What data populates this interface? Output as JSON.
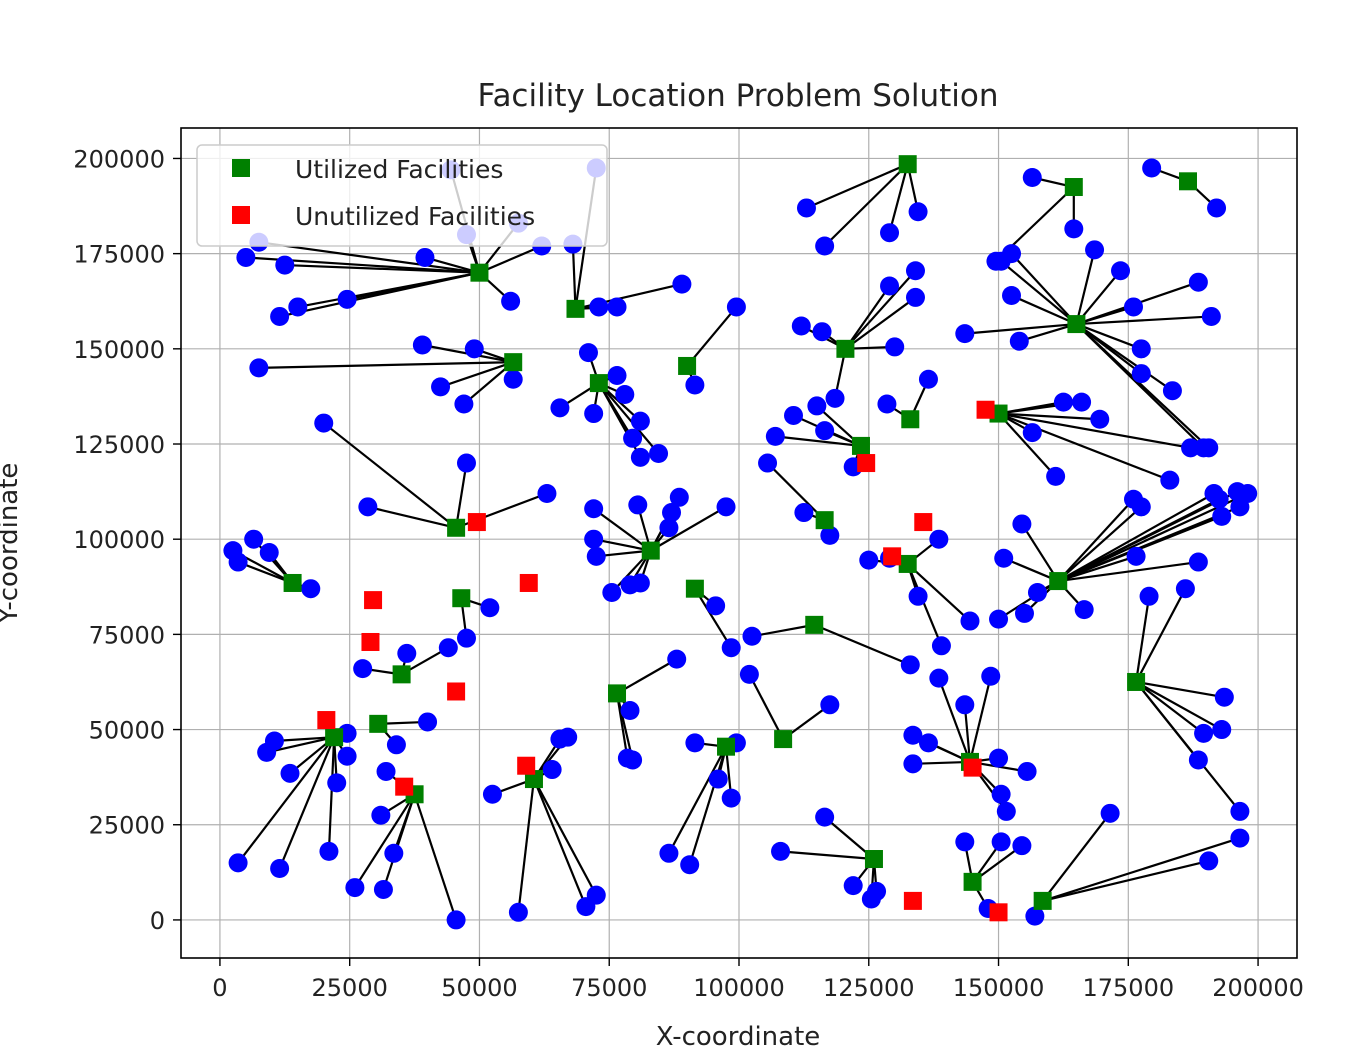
{
  "chart_data": {
    "type": "scatter",
    "title": "Facility Location Problem Solution",
    "xlabel": "X-coordinate",
    "ylabel": "Y-coordinate",
    "xlim": [
      -7500,
      207500
    ],
    "ylim": [
      -10000,
      208000
    ],
    "xticks": [
      0,
      25000,
      50000,
      75000,
      100000,
      125000,
      150000,
      175000,
      200000
    ],
    "yticks": [
      0,
      25000,
      50000,
      75000,
      100000,
      125000,
      150000,
      175000,
      200000
    ],
    "grid": true,
    "legend": {
      "placement": "top-left",
      "entries": [
        {
          "name": "Utilized Facilities",
          "color": "#008000"
        },
        {
          "name": "Unutilized Facilities",
          "color": "#ff0000"
        }
      ]
    },
    "colors": {
      "customer": "#0000ff",
      "assignment_line": "#000000",
      "utilized": "#008000",
      "unutilized": "#ff0000"
    },
    "utilized_facilities": [
      {
        "x": 50000,
        "y": 170000,
        "customers": [
          [
            5000,
            174000
          ],
          [
            7500,
            178000
          ],
          [
            12500,
            172000
          ],
          [
            11500,
            158500
          ],
          [
            15000,
            161000
          ],
          [
            24500,
            163000
          ],
          [
            39500,
            174000
          ],
          [
            44500,
            197000
          ],
          [
            47500,
            180000
          ],
          [
            56000,
            162500
          ],
          [
            57500,
            183000
          ],
          [
            62000,
            177000
          ]
        ]
      },
      {
        "x": 68500,
        "y": 160500,
        "customers": [
          [
            68000,
            177500
          ],
          [
            72500,
            197500
          ],
          [
            73000,
            161000
          ],
          [
            76500,
            161000
          ],
          [
            89000,
            167000
          ]
        ]
      },
      {
        "x": 56500,
        "y": 146500,
        "customers": [
          [
            7500,
            145000
          ],
          [
            39000,
            151000
          ],
          [
            42500,
            140000
          ],
          [
            47000,
            135500
          ],
          [
            49000,
            150000
          ],
          [
            56500,
            142000
          ]
        ]
      },
      {
        "x": 90000,
        "y": 145500,
        "customers": [
          [
            91500,
            140500
          ],
          [
            99500,
            161000
          ]
        ]
      },
      {
        "x": 73000,
        "y": 141000,
        "customers": [
          [
            65500,
            134500
          ],
          [
            71000,
            149000
          ],
          [
            72000,
            133000
          ],
          [
            76500,
            143000
          ],
          [
            78000,
            138000
          ],
          [
            79500,
            126500
          ],
          [
            81000,
            131000
          ],
          [
            81000,
            121500
          ],
          [
            84500,
            122500
          ]
        ]
      },
      {
        "x": 132500,
        "y": 198500,
        "customers": [
          [
            113000,
            187000
          ],
          [
            116500,
            177000
          ],
          [
            129000,
            180500
          ],
          [
            134500,
            186000
          ]
        ]
      },
      {
        "x": 120500,
        "y": 150000,
        "customers": [
          [
            112000,
            156000
          ],
          [
            116000,
            154500
          ],
          [
            118500,
            137000
          ],
          [
            129000,
            166500
          ],
          [
            134000,
            170500
          ],
          [
            134000,
            163500
          ],
          [
            130000,
            150500
          ]
        ]
      },
      {
        "x": 123500,
        "y": 124500,
        "customers": [
          [
            107000,
            127000
          ],
          [
            110500,
            132500
          ],
          [
            115000,
            135000
          ],
          [
            116500,
            128500
          ],
          [
            122000,
            119000
          ]
        ]
      },
      {
        "x": 133000,
        "y": 131500,
        "customers": [
          [
            128500,
            135500
          ],
          [
            136500,
            142000
          ]
        ]
      },
      {
        "x": 164500,
        "y": 192500,
        "customers": [
          [
            156500,
            195000
          ],
          [
            164500,
            181500
          ],
          [
            149500,
            173000
          ]
        ]
      },
      {
        "x": 186500,
        "y": 194000,
        "customers": [
          [
            179500,
            197500
          ],
          [
            192000,
            187000
          ]
        ]
      },
      {
        "x": 165000,
        "y": 156500,
        "customers": [
          [
            150500,
            173000
          ],
          [
            152500,
            175000
          ],
          [
            152500,
            164000
          ],
          [
            154000,
            152000
          ],
          [
            143500,
            154000
          ],
          [
            168500,
            176000
          ],
          [
            173500,
            170500
          ],
          [
            176000,
            161000
          ],
          [
            177500,
            150000
          ],
          [
            177500,
            143500
          ],
          [
            183500,
            139000
          ],
          [
            188500,
            167500
          ],
          [
            191000,
            158500
          ],
          [
            189500,
            124000
          ],
          [
            190500,
            124000
          ]
        ]
      },
      {
        "x": 150000,
        "y": 133000,
        "customers": [
          [
            156500,
            128000
          ],
          [
            161000,
            116500
          ],
          [
            162500,
            136000
          ],
          [
            166000,
            136000
          ],
          [
            169500,
            131500
          ],
          [
            183000,
            115500
          ],
          [
            187000,
            124000
          ]
        ]
      },
      {
        "x": 45500,
        "y": 103000,
        "customers": [
          [
            20000,
            130500
          ],
          [
            28500,
            108500
          ],
          [
            47500,
            120000
          ],
          [
            63000,
            112000
          ]
        ]
      },
      {
        "x": 14000,
        "y": 88500,
        "customers": [
          [
            2500,
            97000
          ],
          [
            3500,
            94000
          ],
          [
            6500,
            100000
          ],
          [
            9500,
            96500
          ],
          [
            17500,
            87000
          ]
        ]
      },
      {
        "x": 46500,
        "y": 84500,
        "customers": [
          [
            47500,
            74000
          ],
          [
            52000,
            82000
          ]
        ]
      },
      {
        "x": 35000,
        "y": 64500,
        "customers": [
          [
            27500,
            66000
          ],
          [
            36000,
            70000
          ],
          [
            44000,
            71500
          ]
        ]
      },
      {
        "x": 83000,
        "y": 97000,
        "customers": [
          [
            72000,
            108000
          ],
          [
            72000,
            100000
          ],
          [
            72500,
            95500
          ],
          [
            75500,
            86000
          ],
          [
            79000,
            88000
          ],
          [
            81000,
            88500
          ],
          [
            80500,
            109000
          ],
          [
            86500,
            103000
          ],
          [
            87000,
            107000
          ],
          [
            88500,
            111000
          ],
          [
            97500,
            108500
          ]
        ]
      },
      {
        "x": 91500,
        "y": 87000,
        "customers": [
          [
            95500,
            82500
          ],
          [
            98500,
            71500
          ]
        ]
      },
      {
        "x": 114500,
        "y": 77500,
        "customers": [
          [
            102500,
            74500
          ],
          [
            133000,
            67000
          ]
        ]
      },
      {
        "x": 116500,
        "y": 105000,
        "customers": [
          [
            105500,
            120000
          ],
          [
            112500,
            107000
          ],
          [
            117500,
            101000
          ]
        ]
      },
      {
        "x": 132500,
        "y": 93500,
        "customers": [
          [
            125000,
            94500
          ],
          [
            129000,
            95000
          ],
          [
            134500,
            85000
          ],
          [
            138500,
            100000
          ],
          [
            139000,
            72000
          ],
          [
            144500,
            78500
          ]
        ]
      },
      {
        "x": 161500,
        "y": 89000,
        "customers": [
          [
            150000,
            79000
          ],
          [
            151000,
            95000
          ],
          [
            154500,
            104000
          ],
          [
            155000,
            80500
          ],
          [
            157500,
            86000
          ],
          [
            166500,
            81500
          ],
          [
            176000,
            110500
          ],
          [
            177500,
            108500
          ],
          [
            176500,
            95500
          ],
          [
            188500,
            94000
          ],
          [
            191500,
            112000
          ],
          [
            192500,
            110500
          ],
          [
            193000,
            106000
          ],
          [
            196000,
            112500
          ],
          [
            196500,
            108500
          ],
          [
            198000,
            112000
          ]
        ]
      },
      {
        "x": 176500,
        "y": 62500,
        "customers": [
          [
            179000,
            85000
          ],
          [
            186000,
            87000
          ],
          [
            188500,
            42000
          ],
          [
            189500,
            49000
          ],
          [
            193500,
            58500
          ],
          [
            193000,
            50000
          ],
          [
            196500,
            28500
          ]
        ]
      },
      {
        "x": 76500,
        "y": 59500,
        "customers": [
          [
            79000,
            55000
          ],
          [
            78500,
            42500
          ],
          [
            79500,
            42000
          ],
          [
            88000,
            68500
          ]
        ]
      },
      {
        "x": 108500,
        "y": 47500,
        "customers": [
          [
            102000,
            64500
          ],
          [
            117500,
            56500
          ]
        ]
      },
      {
        "x": 97500,
        "y": 45500,
        "customers": [
          [
            86500,
            17500
          ],
          [
            90500,
            14500
          ],
          [
            91500,
            46500
          ],
          [
            96000,
            37000
          ],
          [
            98500,
            32000
          ],
          [
            99500,
            46500
          ]
        ]
      },
      {
        "x": 60500,
        "y": 37000,
        "customers": [
          [
            52500,
            33000
          ],
          [
            57500,
            2000
          ],
          [
            64000,
            39500
          ],
          [
            65500,
            47500
          ],
          [
            67000,
            48000
          ],
          [
            70500,
            3500
          ],
          [
            72500,
            6500
          ]
        ]
      },
      {
        "x": 37500,
        "y": 33000,
        "customers": [
          [
            26000,
            8500
          ],
          [
            31000,
            27500
          ],
          [
            31500,
            8000
          ],
          [
            32000,
            39000
          ],
          [
            33500,
            17500
          ],
          [
            45500,
            0
          ]
        ]
      },
      {
        "x": 30500,
        "y": 51500,
        "customers": [
          [
            34000,
            46000
          ],
          [
            40000,
            52000
          ]
        ]
      },
      {
        "x": 22000,
        "y": 48000,
        "customers": [
          [
            3500,
            15000
          ],
          [
            9000,
            44000
          ],
          [
            10500,
            47000
          ],
          [
            13500,
            38500
          ],
          [
            11500,
            13500
          ],
          [
            21000,
            18000
          ],
          [
            22500,
            36000
          ],
          [
            24500,
            43000
          ],
          [
            24500,
            49000
          ]
        ]
      },
      {
        "x": 126000,
        "y": 16000,
        "customers": [
          [
            108000,
            18000
          ],
          [
            116500,
            27000
          ],
          [
            122000,
            9000
          ],
          [
            125500,
            5500
          ],
          [
            126500,
            7500
          ]
        ]
      },
      {
        "x": 144500,
        "y": 41500,
        "customers": [
          [
            133500,
            48500
          ],
          [
            133500,
            41000
          ],
          [
            136500,
            46500
          ],
          [
            138500,
            63500
          ],
          [
            143500,
            56500
          ],
          [
            148500,
            64000
          ],
          [
            150000,
            42500
          ],
          [
            150500,
            33000
          ],
          [
            151500,
            28500
          ],
          [
            155500,
            39000
          ]
        ]
      },
      {
        "x": 145000,
        "y": 10000,
        "customers": [
          [
            143500,
            20500
          ],
          [
            148000,
            3000
          ],
          [
            150500,
            20500
          ],
          [
            154500,
            19500
          ]
        ]
      },
      {
        "x": 158500,
        "y": 5000,
        "customers": [
          [
            157000,
            1000
          ],
          [
            171500,
            28000
          ],
          [
            190500,
            15500
          ],
          [
            196500,
            21500
          ]
        ]
      }
    ],
    "unutilized_facilities": [
      [
        147500,
        134000
      ],
      [
        124500,
        120000
      ],
      [
        135500,
        104500
      ],
      [
        129500,
        95500
      ],
      [
        49500,
        104500
      ],
      [
        59500,
        88500
      ],
      [
        29500,
        84000
      ],
      [
        29000,
        73000
      ],
      [
        45500,
        60000
      ],
      [
        20500,
        52500
      ],
      [
        35500,
        35000
      ],
      [
        59000,
        40500
      ],
      [
        145000,
        40000
      ],
      [
        133500,
        5000
      ],
      [
        150000,
        2000
      ]
    ]
  }
}
